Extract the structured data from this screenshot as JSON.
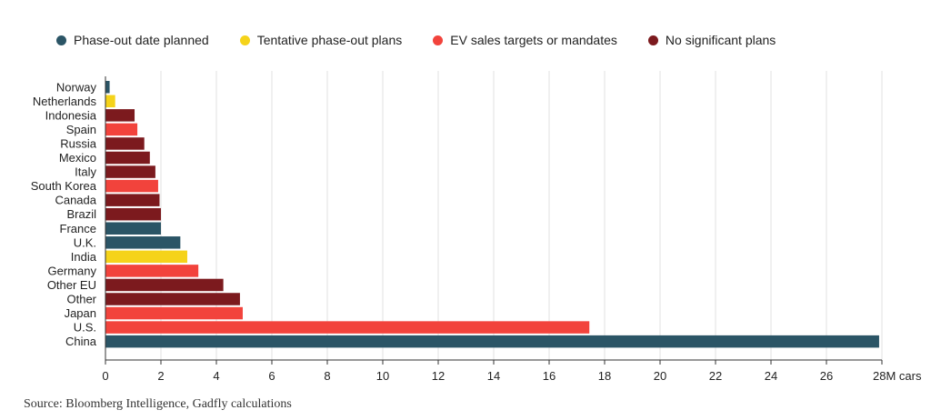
{
  "legend": [
    {
      "label": "Phase-out date planned",
      "color": "#2b5566"
    },
    {
      "label": "Tentative phase-out plans",
      "color": "#f5d31a"
    },
    {
      "label": "EV sales targets or mandates",
      "color": "#f2433c"
    },
    {
      "label": "No significant plans",
      "color": "#7c1a1e"
    }
  ],
  "source": "Source: Bloomberg Intelligence, Gadfly calculations",
  "chart_data": {
    "type": "bar",
    "orientation": "horizontal",
    "categories": [
      "Norway",
      "Netherlands",
      "Indonesia",
      "Spain",
      "Russia",
      "Mexico",
      "Italy",
      "South Korea",
      "Canada",
      "Brazil",
      "France",
      "U.K.",
      "India",
      "Germany",
      "Other EU",
      "Other",
      "Japan",
      "U.S.",
      "China"
    ],
    "values": [
      0.15,
      0.35,
      1.05,
      1.15,
      1.4,
      1.6,
      1.8,
      1.9,
      1.95,
      2.0,
      2.0,
      2.7,
      2.95,
      3.35,
      4.25,
      4.85,
      4.95,
      17.45,
      27.9
    ],
    "groups": [
      "Phase-out date planned",
      "Tentative phase-out plans",
      "No significant plans",
      "EV sales targets or mandates",
      "No significant plans",
      "No significant plans",
      "No significant plans",
      "EV sales targets or mandates",
      "No significant plans",
      "No significant plans",
      "Phase-out date planned",
      "Phase-out date planned",
      "Tentative phase-out plans",
      "EV sales targets or mandates",
      "No significant plans",
      "No significant plans",
      "EV sales targets or mandates",
      "EV sales targets or mandates",
      "Phase-out date planned"
    ],
    "xlim": [
      0,
      28
    ],
    "xticks": [
      0,
      2,
      4,
      6,
      8,
      10,
      12,
      14,
      16,
      18,
      20,
      22,
      24,
      26,
      28
    ],
    "xtick_labels": [
      "0",
      "2",
      "4",
      "6",
      "8",
      "10",
      "12",
      "14",
      "16",
      "18",
      "20",
      "22",
      "24",
      "26",
      "28M cars"
    ],
    "grid": true,
    "legend_position": "top"
  }
}
